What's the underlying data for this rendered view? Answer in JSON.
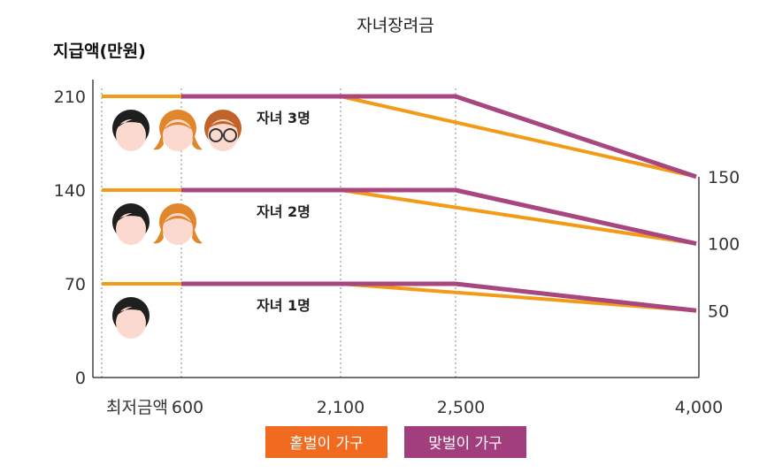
{
  "chart_data": {
    "type": "line",
    "title": "자녀장려금",
    "ylabel": "지급액(만원)",
    "xlabel": "",
    "x_tick_labels": [
      "최저금액",
      "600",
      "2,100",
      "2,500",
      "4,000"
    ],
    "y_ticks": [
      0,
      70,
      140,
      210
    ],
    "y_tick_labels": [
      "0",
      "70",
      "140",
      "210"
    ],
    "right_tick_labels": [
      "150",
      "100",
      "50"
    ],
    "right_ticks": [
      150,
      100,
      50
    ],
    "ylim": [
      0,
      225
    ],
    "grid": "dotted vertical at x ticks",
    "legend_position": "bottom",
    "groups": [
      {
        "label": "자녀 3명",
        "faces": [
          "boy",
          "girl",
          "glasses-boy"
        ],
        "series": [
          {
            "name": "홑벌이 가구",
            "color": "#F39A17",
            "points": [
              [
                0,
                210
              ],
              [
                2100,
                210
              ],
              [
                4000,
                150
              ]
            ]
          },
          {
            "name": "맞벌이 가구",
            "color": "#A8467F",
            "points": [
              [
                600,
                210
              ],
              [
                2500,
                210
              ],
              [
                4000,
                150
              ]
            ]
          }
        ]
      },
      {
        "label": "자녀 2명",
        "faces": [
          "boy",
          "girl"
        ],
        "series": [
          {
            "name": "홑벌이 가구",
            "color": "#F39A17",
            "points": [
              [
                0,
                140
              ],
              [
                2100,
                140
              ],
              [
                4000,
                100
              ]
            ]
          },
          {
            "name": "맞벌이 가구",
            "color": "#A8467F",
            "points": [
              [
                600,
                140
              ],
              [
                2500,
                140
              ],
              [
                4000,
                100
              ]
            ]
          }
        ]
      },
      {
        "label": "자녀 1명",
        "faces": [
          "boy"
        ],
        "series": [
          {
            "name": "홑벌이 가구",
            "color": "#F39A17",
            "points": [
              [
                0,
                70
              ],
              [
                2100,
                70
              ],
              [
                4000,
                50
              ]
            ]
          },
          {
            "name": "맞벌이 가구",
            "color": "#A8467F",
            "points": [
              [
                600,
                70
              ],
              [
                2500,
                70
              ],
              [
                4000,
                50
              ]
            ]
          }
        ]
      }
    ],
    "legend": [
      {
        "label": "홑벌이 가구",
        "color": "#F06B1F"
      },
      {
        "label": "맞벌이 가구",
        "color": "#A23E7E"
      }
    ]
  }
}
